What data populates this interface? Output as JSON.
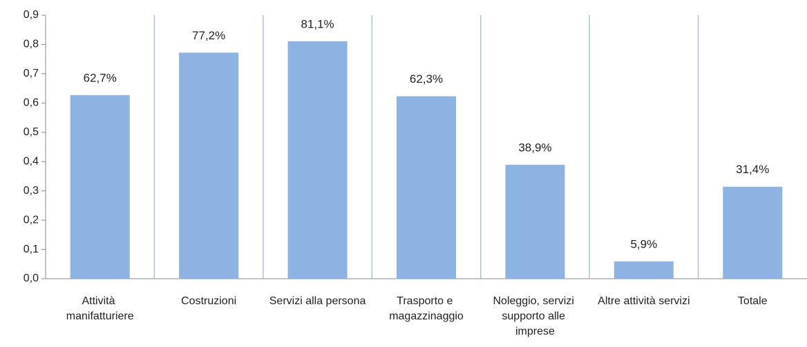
{
  "chart_data": {
    "type": "bar",
    "categories": [
      "Attività manifatturiere",
      "Costruzioni",
      "Servizi alla persona",
      "Trasporto e magazzinaggio",
      "Noleggio, servizi supporto alle imprese",
      "Altre attività servizi",
      "Totale"
    ],
    "values": [
      0.627,
      0.772,
      0.811,
      0.623,
      0.389,
      0.059,
      0.314
    ],
    "value_labels": [
      "62,7%",
      "77,2%",
      "81,1%",
      "62,3%",
      "38,9%",
      "5,9%",
      "31,4%"
    ],
    "color": "#8db3e2",
    "ylim": [
      0,
      0.9
    ],
    "yticks": [
      {
        "value": 0,
        "label": "0,0"
      },
      {
        "value": 0.1,
        "label": "0,1"
      },
      {
        "value": 0.2,
        "label": "0,2"
      },
      {
        "value": 0.3,
        "label": "0,3"
      },
      {
        "value": 0.4,
        "label": "0,4"
      },
      {
        "value": 0.5,
        "label": "0,5"
      },
      {
        "value": 0.6,
        "label": "0,6"
      },
      {
        "value": 0.7,
        "label": "0,7"
      },
      {
        "value": 0.8,
        "label": "0,8"
      },
      {
        "value": 0.9,
        "label": "0,9"
      }
    ],
    "grid": false
  }
}
